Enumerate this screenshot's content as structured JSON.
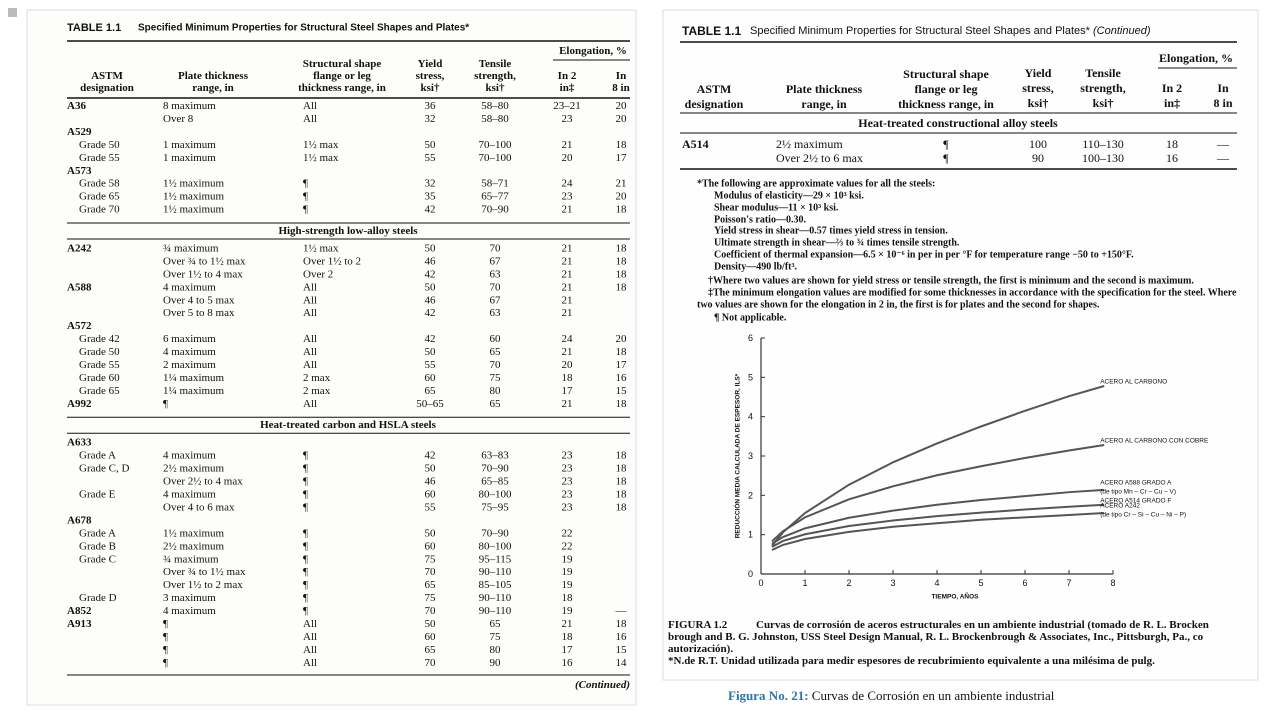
{
  "slide_caption": {
    "label": "Figura No. 21:",
    "text": "Curvas de Corrosión en un ambiente industrial"
  },
  "left_page": {
    "table_label": "TABLE 1.1",
    "title": "Specified Minimum Properties for Structural Steel Shapes and Plates*",
    "group_header": "Elongation, %",
    "columns": [
      [
        "ASTM",
        "designation"
      ],
      [
        "Plate thickness",
        "range, in"
      ],
      [
        "Structural shape",
        "flange or leg",
        "thickness range, in"
      ],
      [
        "Yield",
        "stress,",
        "ksi†"
      ],
      [
        "Tensile",
        "strength,",
        "ksi†"
      ],
      [
        "In 2",
        "in‡"
      ],
      [
        "In",
        "8 in"
      ]
    ],
    "rows": [
      [
        "A36",
        "8 maximum",
        "All",
        "36",
        "58–80",
        "23–21",
        "20"
      ],
      [
        null,
        "Over 8",
        "All",
        "32",
        "58–80",
        "23",
        "20"
      ],
      [
        "A529",
        null,
        null,
        null,
        null,
        null,
        null
      ],
      [
        "Grade 50",
        "1 maximum",
        "1½ max",
        "50",
        "70–100",
        "21",
        "18"
      ],
      [
        "Grade 55",
        "1 maximum",
        "1½ max",
        "55",
        "70–100",
        "20",
        "17"
      ],
      [
        "A573",
        null,
        null,
        null,
        null,
        null,
        null
      ],
      [
        "Grade 58",
        "1½ maximum",
        "¶",
        "32",
        "58–71",
        "24",
        "21"
      ],
      [
        "Grade 65",
        "1½ maximum",
        "¶",
        "35",
        "65–77",
        "23",
        "20"
      ],
      [
        "Grade 70",
        "1½ maximum",
        "¶",
        "42",
        "70–90",
        "21",
        "18"
      ],
      {
        "section": "High-strength low-alloy steels"
      },
      [
        "A242",
        "¾ maximum",
        "1½ max",
        "50",
        "70",
        "21",
        "18"
      ],
      [
        null,
        "Over ¾ to 1½ max",
        "Over 1½ to 2",
        "46",
        "67",
        "21",
        "18"
      ],
      [
        null,
        "Over 1½ to 4 max",
        "Over 2",
        "42",
        "63",
        "21",
        "18"
      ],
      [
        "A588",
        "4 maximum",
        "All",
        "50",
        "70",
        "21",
        "18"
      ],
      [
        null,
        "Over 4 to 5 max",
        "All",
        "46",
        "67",
        "21",
        null
      ],
      [
        null,
        "Over 5 to 8 max",
        "All",
        "42",
        "63",
        "21",
        null
      ],
      [
        "A572",
        null,
        null,
        null,
        null,
        null,
        null
      ],
      [
        "Grade 42",
        "6 maximum",
        "All",
        "42",
        "60",
        "24",
        "20"
      ],
      [
        "Grade 50",
        "4 maximum",
        "All",
        "50",
        "65",
        "21",
        "18"
      ],
      [
        "Grade 55",
        "2 maximum",
        "All",
        "55",
        "70",
        "20",
        "17"
      ],
      [
        "Grade 60",
        "1¼ maximum",
        "2 max",
        "60",
        "75",
        "18",
        "16"
      ],
      [
        "Grade 65",
        "1¼ maximum",
        "2 max",
        "65",
        "80",
        "17",
        "15"
      ],
      [
        "A992",
        "¶",
        "All",
        "50–65",
        "65",
        "21",
        "18"
      ],
      {
        "section": "Heat-treated carbon and HSLA steels"
      },
      [
        "A633",
        null,
        null,
        null,
        null,
        null,
        null
      ],
      [
        "Grade A",
        "4 maximum",
        "¶",
        "42",
        "63–83",
        "23",
        "18"
      ],
      [
        "Grade C, D",
        "2½ maximum",
        "¶",
        "50",
        "70–90",
        "23",
        "18"
      ],
      [
        null,
        "Over 2½ to 4 max",
        "¶",
        "46",
        "65–85",
        "23",
        "18"
      ],
      [
        "Grade E",
        "4 maximum",
        "¶",
        "60",
        "80–100",
        "23",
        "18"
      ],
      [
        null,
        "Over 4 to 6 max",
        "¶",
        "55",
        "75–95",
        "23",
        "18"
      ],
      [
        "A678",
        null,
        null,
        null,
        null,
        null,
        null
      ],
      [
        "Grade A",
        "1½ maximum",
        "¶",
        "50",
        "70–90",
        "22",
        null
      ],
      [
        "Grade B",
        "2½ maximum",
        "¶",
        "60",
        "80–100",
        "22",
        null
      ],
      [
        "Grade C",
        "¾ maximum",
        "¶",
        "75",
        "95–115",
        "19",
        null
      ],
      [
        null,
        "Over ¾ to 1½ max",
        "¶",
        "70",
        "90–110",
        "19",
        null
      ],
      [
        null,
        "Over 1½ to 2 max",
        "¶",
        "65",
        "85–105",
        "19",
        null
      ],
      [
        "Grade D",
        "3 maximum",
        "¶",
        "75",
        "90–110",
        "18",
        null
      ],
      [
        "A852",
        "4 maximum",
        "¶",
        "70",
        "90–110",
        "19",
        "—"
      ],
      [
        "A913",
        "¶",
        "All",
        "50",
        "65",
        "21",
        "18"
      ],
      [
        null,
        "¶",
        "All",
        "60",
        "75",
        "18",
        "16"
      ],
      [
        null,
        "¶",
        "All",
        "65",
        "80",
        "17",
        "15"
      ],
      [
        null,
        "¶",
        "All",
        "70",
        "90",
        "16",
        "14"
      ]
    ],
    "continued": "(Continued)"
  },
  "right_page": {
    "table_label": "TABLE 1.1",
    "title": "Specified Minimum Properties for Structural Steel Shapes and Plates*",
    "title_suffix": "(Continued)",
    "group_header": "Elongation, %",
    "columns": [
      [
        "ASTM",
        "designation"
      ],
      [
        "Plate thickness",
        "range, in"
      ],
      [
        "Structural shape",
        "flange or leg",
        "thickness range, in"
      ],
      [
        "Yield",
        "stress,",
        "ksi†"
      ],
      [
        "Tensile",
        "strength,",
        "ksi†"
      ],
      [
        "In 2",
        "in‡"
      ],
      [
        "In",
        "8 in"
      ]
    ],
    "section": "Heat-treated constructional alloy steels",
    "rows": [
      [
        "A514",
        "2½ maximum",
        "¶",
        "100",
        "110–130",
        "18",
        "—"
      ],
      [
        null,
        "Over 2½ to 6 max",
        "¶",
        "90",
        "100–130",
        "16",
        "—"
      ]
    ],
    "notes": [
      "*The following are approximate values for all the steels:",
      "Modulus of elasticity—29 × 10³ ksi.",
      "Shear modulus—11 × 10³ ksi.",
      "Poisson's ratio—0.30.",
      "Yield stress in shear—0.57 times yield stress in tension.",
      "Ultimate strength in shear—⅔ to ¾ times tensile strength.",
      "Coefficient of thermal expansion—6.5 × 10⁻⁶ in per in per °F for temperature range −50 to +150°F.",
      "Density—490 lb/ft³.",
      "†Where two values are shown for yield stress or tensile strength, the first is minimum and the second is maximum.",
      "‡The minimum elongation values are modified for some thicknesses in accordance with the specification for the steel. Where",
      "two values are shown for the elongation in 2 in, the first is for plates and the second for shapes.",
      "¶ Not applicable."
    ],
    "chart_data": {
      "type": "line",
      "xlabel": "TIEMPO, AÑOS",
      "ylabel": "REDUCCIÓN MEDIA CALCULADA DE ESPESOR, ILS*",
      "x": [
        0.25,
        0.5,
        1,
        2,
        3,
        4,
        5,
        6,
        7,
        7.8
      ],
      "xlim": [
        0,
        8
      ],
      "xticks": [
        0,
        1,
        2,
        3,
        4,
        5,
        6,
        7,
        8
      ],
      "ylim": [
        0,
        6
      ],
      "yticks": [
        0,
        1,
        2,
        3,
        4,
        5,
        6
      ],
      "color": "#555555",
      "series": [
        {
          "name": "ACERO AL CARBONO",
          "values": [
            0.72,
            1.06,
            1.55,
            2.27,
            2.84,
            3.32,
            3.75,
            4.15,
            4.52,
            4.78
          ]
        },
        {
          "name": "ACERO AL CARBONO CON COBRE",
          "values": [
            0.83,
            1.09,
            1.44,
            1.9,
            2.23,
            2.51,
            2.74,
            2.95,
            3.14,
            3.28
          ]
        },
        {
          "name": "ACERO A588 GRADO A",
          "note": "(de tipo Mn – Cr – Cu – V)",
          "values": [
            0.77,
            0.94,
            1.16,
            1.43,
            1.61,
            1.76,
            1.88,
            1.98,
            2.08,
            2.14
          ]
        },
        {
          "name": "ACERO A514 GRADO F",
          "values": [
            0.69,
            0.84,
            1.01,
            1.22,
            1.36,
            1.47,
            1.56,
            1.64,
            1.71,
            1.76
          ]
        },
        {
          "name": "ACERO A242",
          "note": "(de tipo Cr – Si – Cu – Ni – P)",
          "values": [
            0.61,
            0.74,
            0.89,
            1.07,
            1.2,
            1.29,
            1.38,
            1.44,
            1.5,
            1.55
          ]
        }
      ]
    },
    "figure": {
      "label": "FIGURA 1.2",
      "lines": [
        "Curvas de corrosión de aceros estructurales en un ambiente industrial (tomado de R. L. Brocken",
        "brough and B. G. Johnston, USS Steel Design Manual, R. L. Brockenbrough & Associates, Inc., Pittsburgh, Pa., co",
        "autorización)."
      ],
      "note": "*N.de R.T. Unidad utilizada para medir espesores de recubrimiento equivalente a una milésima de pulg."
    }
  }
}
